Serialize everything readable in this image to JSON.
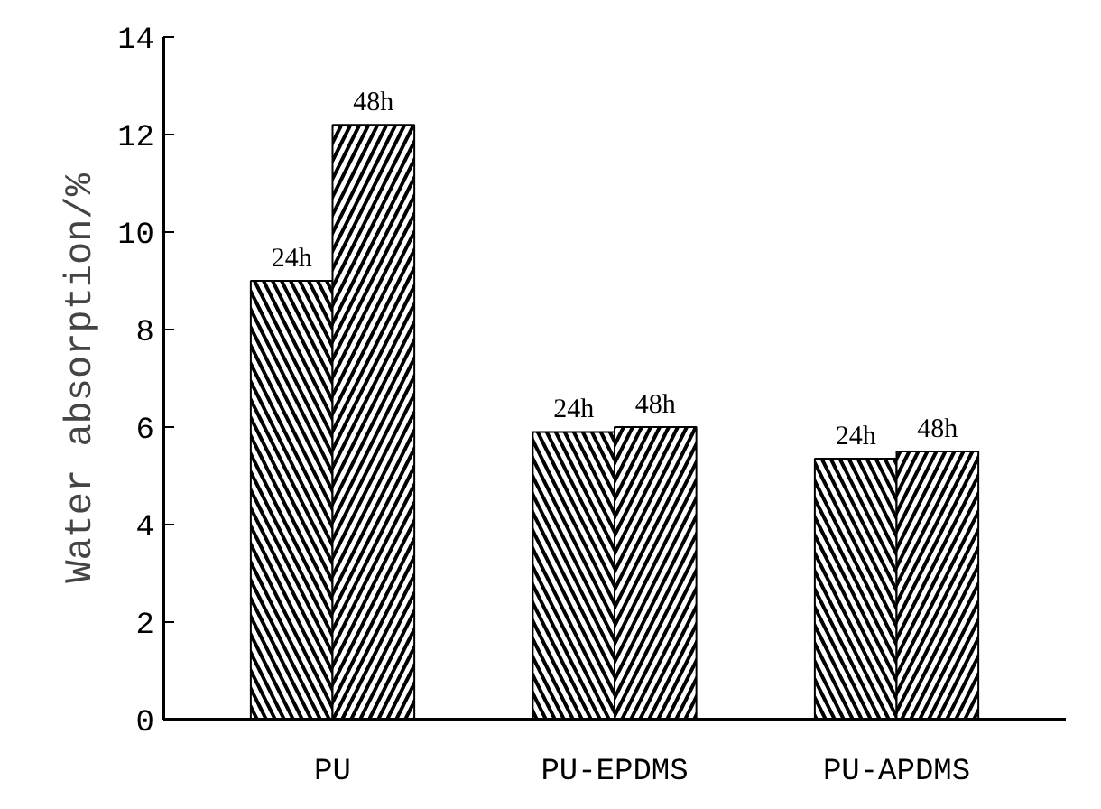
{
  "chart_data": {
    "type": "bar",
    "ylabel": "Water absorption/%",
    "categories": [
      "PU",
      "PU-EPDMS",
      "PU-APDMS"
    ],
    "series": [
      {
        "name": "24h",
        "color": "#000000",
        "values": [
          9.0,
          5.9,
          5.35
        ]
      },
      {
        "name": "48h",
        "color": "#000000",
        "values": [
          12.2,
          6.0,
          5.5
        ]
      }
    ],
    "ylim": [
      0,
      14
    ],
    "yticks": [
      0,
      2,
      4,
      6,
      8,
      10,
      12,
      14
    ],
    "grid": false
  }
}
